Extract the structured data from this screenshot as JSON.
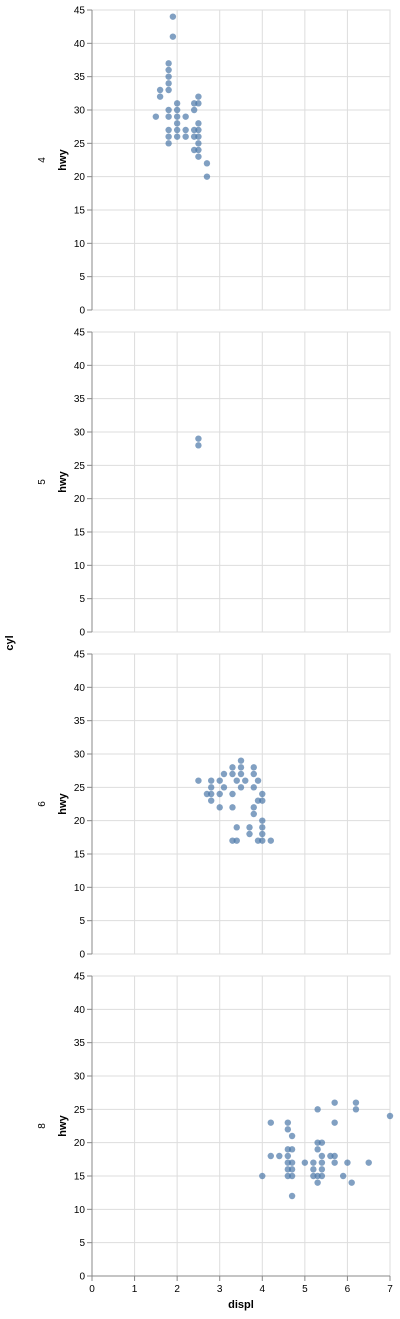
{
  "chart_data": {
    "type": "scatter",
    "facet_by": "cyl",
    "facet_title": "cyl",
    "xlabel": "displ",
    "ylabel": "hwy",
    "xlim": [
      0,
      7
    ],
    "ylim": [
      0,
      45
    ],
    "x_ticks": [
      "0",
      "1",
      "2",
      "3",
      "4",
      "5",
      "6",
      "7"
    ],
    "y_ticks": [
      "0",
      "5",
      "10",
      "15",
      "20",
      "25",
      "30",
      "35",
      "40",
      "45"
    ],
    "grid": true,
    "point_color": "#4c78a8",
    "facets": [
      {
        "label": "4",
        "points": [
          [
            1.9,
            44
          ],
          [
            1.9,
            41
          ],
          [
            1.8,
            37
          ],
          [
            1.8,
            36
          ],
          [
            1.8,
            35
          ],
          [
            1.8,
            34
          ],
          [
            1.8,
            33
          ],
          [
            1.6,
            33
          ],
          [
            1.6,
            32
          ],
          [
            2.5,
            32
          ],
          [
            2.4,
            31
          ],
          [
            2.0,
            31
          ],
          [
            2.5,
            31
          ],
          [
            2.0,
            30
          ],
          [
            1.8,
            30
          ],
          [
            2.4,
            30
          ],
          [
            1.5,
            29
          ],
          [
            1.8,
            29
          ],
          [
            2.0,
            29
          ],
          [
            2.2,
            29
          ],
          [
            2.0,
            28
          ],
          [
            2.5,
            28
          ],
          [
            1.8,
            27
          ],
          [
            2.0,
            27
          ],
          [
            2.2,
            27
          ],
          [
            2.4,
            27
          ],
          [
            2.5,
            27
          ],
          [
            1.8,
            26
          ],
          [
            2.0,
            26
          ],
          [
            2.2,
            26
          ],
          [
            2.4,
            26
          ],
          [
            2.5,
            26
          ],
          [
            1.8,
            25
          ],
          [
            2.5,
            25
          ],
          [
            2.4,
            24
          ],
          [
            2.5,
            24
          ],
          [
            2.5,
            23
          ],
          [
            2.7,
            22
          ],
          [
            2.7,
            20
          ]
        ]
      },
      {
        "label": "5",
        "points": [
          [
            2.5,
            29
          ],
          [
            2.5,
            28
          ]
        ]
      },
      {
        "label": "6",
        "points": [
          [
            3.5,
            29
          ],
          [
            3.3,
            28
          ],
          [
            3.5,
            28
          ],
          [
            3.8,
            28
          ],
          [
            3.1,
            27
          ],
          [
            3.3,
            27
          ],
          [
            3.5,
            27
          ],
          [
            3.8,
            27
          ],
          [
            2.5,
            26
          ],
          [
            2.8,
            26
          ],
          [
            3.0,
            26
          ],
          [
            3.4,
            26
          ],
          [
            3.6,
            26
          ],
          [
            3.9,
            26
          ],
          [
            2.8,
            25
          ],
          [
            3.1,
            25
          ],
          [
            3.5,
            25
          ],
          [
            3.8,
            25
          ],
          [
            2.7,
            24
          ],
          [
            2.8,
            24
          ],
          [
            3.0,
            24
          ],
          [
            3.3,
            24
          ],
          [
            4.0,
            24
          ],
          [
            2.8,
            23
          ],
          [
            3.9,
            23
          ],
          [
            4.0,
            23
          ],
          [
            3.0,
            22
          ],
          [
            3.3,
            22
          ],
          [
            3.8,
            22
          ],
          [
            3.8,
            21
          ],
          [
            4.0,
            20
          ],
          [
            3.4,
            19
          ],
          [
            3.7,
            19
          ],
          [
            4.0,
            19
          ],
          [
            3.7,
            18
          ],
          [
            4.0,
            18
          ],
          [
            3.3,
            17
          ],
          [
            3.4,
            17
          ],
          [
            3.9,
            17
          ],
          [
            4.0,
            17
          ],
          [
            4.2,
            17
          ]
        ]
      },
      {
        "label": "8",
        "points": [
          [
            5.7,
            26
          ],
          [
            6.2,
            26
          ],
          [
            5.3,
            25
          ],
          [
            6.2,
            25
          ],
          [
            7.0,
            24
          ],
          [
            4.2,
            23
          ],
          [
            4.6,
            23
          ],
          [
            5.7,
            23
          ],
          [
            4.6,
            22
          ],
          [
            4.7,
            21
          ],
          [
            5.3,
            20
          ],
          [
            5.4,
            20
          ],
          [
            4.6,
            19
          ],
          [
            4.7,
            19
          ],
          [
            5.3,
            19
          ],
          [
            4.2,
            18
          ],
          [
            4.4,
            18
          ],
          [
            4.6,
            18
          ],
          [
            5.4,
            18
          ],
          [
            5.6,
            18
          ],
          [
            5.7,
            18
          ],
          [
            4.6,
            17
          ],
          [
            4.7,
            17
          ],
          [
            5.0,
            17
          ],
          [
            5.2,
            17
          ],
          [
            5.4,
            17
          ],
          [
            5.7,
            17
          ],
          [
            6.0,
            17
          ],
          [
            6.5,
            17
          ],
          [
            4.6,
            16
          ],
          [
            4.7,
            16
          ],
          [
            5.2,
            16
          ],
          [
            5.4,
            16
          ],
          [
            4.0,
            15
          ],
          [
            4.6,
            15
          ],
          [
            4.7,
            15
          ],
          [
            5.2,
            15
          ],
          [
            5.3,
            15
          ],
          [
            5.4,
            15
          ],
          [
            5.9,
            15
          ],
          [
            5.3,
            14
          ],
          [
            6.1,
            14
          ],
          [
            4.7,
            12
          ]
        ]
      }
    ]
  }
}
